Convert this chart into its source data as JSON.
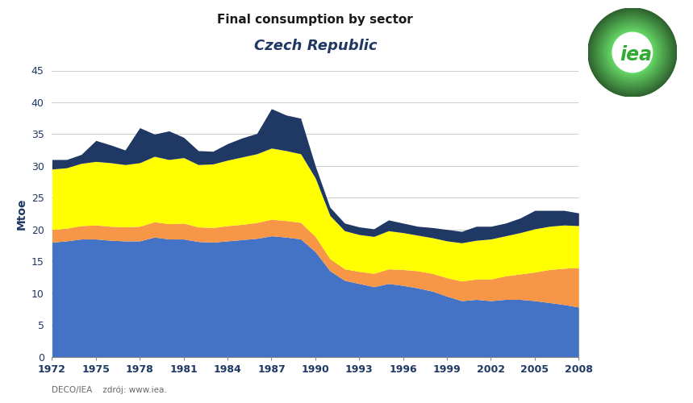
{
  "title1": "Final consumption by sector",
  "title2": "Czech Republic",
  "ylabel": "Mtoe",
  "xlim": [
    1972,
    2008
  ],
  "ylim": [
    0,
    45
  ],
  "yticks": [
    0,
    5,
    10,
    15,
    20,
    25,
    30,
    35,
    40,
    45
  ],
  "xticks": [
    1972,
    1975,
    1978,
    1981,
    1984,
    1987,
    1990,
    1993,
    1996,
    1999,
    2002,
    2005,
    2008
  ],
  "years": [
    1972,
    1973,
    1974,
    1975,
    1976,
    1977,
    1978,
    1979,
    1980,
    1981,
    1982,
    1983,
    1984,
    1985,
    1986,
    1987,
    1988,
    1989,
    1990,
    1991,
    1992,
    1993,
    1994,
    1995,
    1996,
    1997,
    1998,
    1999,
    2000,
    2001,
    2002,
    2003,
    2004,
    2005,
    2006,
    2007,
    2008
  ],
  "industry": [
    18.0,
    18.2,
    18.5,
    18.5,
    18.3,
    18.2,
    18.2,
    18.8,
    18.5,
    18.5,
    18.1,
    18.0,
    18.2,
    18.4,
    18.6,
    19.0,
    18.8,
    18.5,
    16.5,
    13.5,
    12.0,
    11.5,
    11.0,
    11.5,
    11.2,
    10.8,
    10.3,
    9.5,
    8.8,
    9.0,
    8.8,
    9.0,
    9.0,
    8.8,
    8.5,
    8.2,
    7.8
  ],
  "transport": [
    2.0,
    2.0,
    2.1,
    2.2,
    2.2,
    2.2,
    2.3,
    2.4,
    2.4,
    2.5,
    2.3,
    2.3,
    2.4,
    2.4,
    2.5,
    2.6,
    2.6,
    2.6,
    2.4,
    1.9,
    1.8,
    1.9,
    2.1,
    2.3,
    2.5,
    2.7,
    2.8,
    2.9,
    3.1,
    3.2,
    3.4,
    3.7,
    4.0,
    4.5,
    5.2,
    5.7,
    6.2
  ],
  "buildings": [
    9.5,
    9.5,
    9.8,
    10.0,
    10.0,
    9.8,
    10.0,
    10.3,
    10.1,
    10.3,
    9.8,
    10.0,
    10.3,
    10.6,
    10.8,
    11.2,
    11.0,
    10.8,
    9.2,
    6.8,
    6.0,
    5.8,
    5.8,
    6.0,
    5.8,
    5.6,
    5.6,
    5.8,
    6.0,
    6.1,
    6.3,
    6.3,
    6.5,
    6.8,
    6.8,
    6.8,
    6.6
  ],
  "other": [
    1.5,
    1.3,
    1.4,
    3.3,
    2.8,
    2.3,
    5.5,
    3.5,
    4.5,
    3.2,
    2.2,
    2.0,
    2.6,
    3.0,
    3.2,
    6.2,
    5.6,
    5.6,
    1.9,
    1.3,
    1.2,
    1.2,
    1.2,
    1.7,
    1.5,
    1.4,
    1.6,
    1.8,
    1.8,
    2.2,
    2.0,
    2.0,
    2.3,
    2.9,
    2.5,
    2.3,
    2.0
  ],
  "color_industry": "#4472C4",
  "color_transport": "#F79646",
  "color_buildings": "#FFFF00",
  "color_other": "#1F3864",
  "background_color": "#FFFFFF",
  "grid_color": "#CCCCCC",
  "title1_color": "#1A1A1A",
  "title2_color": "#1F3864",
  "ylabel_color": "#1F3864",
  "tick_color": "#1F3864",
  "source_text": "DECO/IEA    zdrój: www.iea.",
  "iea_green_dark": "#5CB85C",
  "iea_green_light": "#A8D8A8",
  "iea_text_color": "#33AA33"
}
